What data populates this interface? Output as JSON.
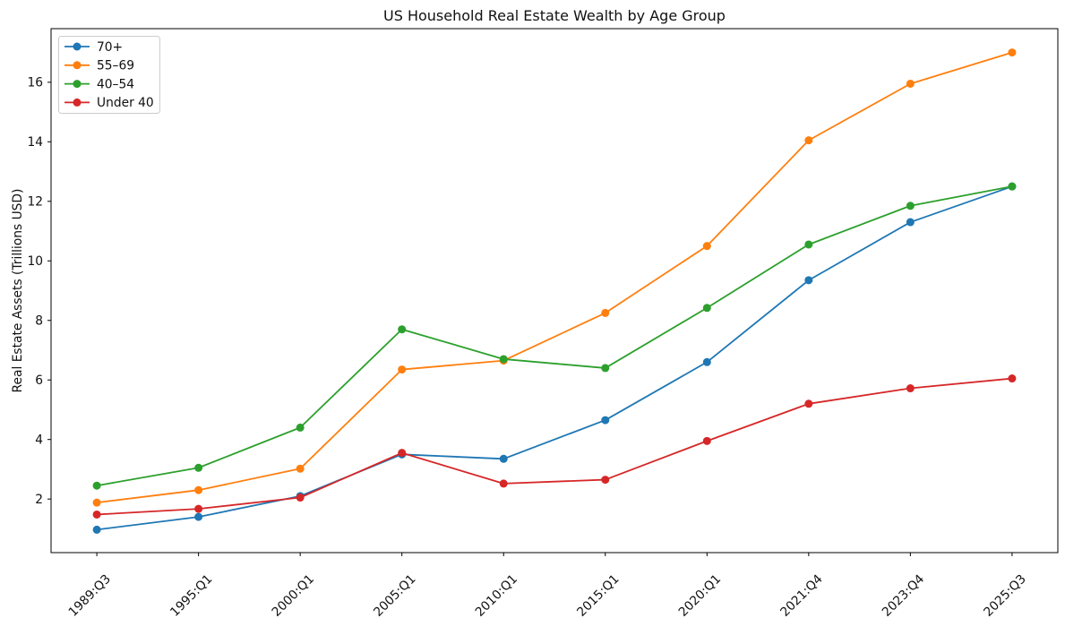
{
  "chart_data": {
    "type": "line",
    "title": "US Household Real Estate Wealth by Age Group",
    "xlabel": "",
    "ylabel": "Real Estate Assets (Trillions USD)",
    "categories": [
      "1989:Q3",
      "1995:Q1",
      "2000:Q1",
      "2005:Q1",
      "2010:Q1",
      "2015:Q1",
      "2020:Q1",
      "2021:Q4",
      "2023:Q4",
      "2025:Q3"
    ],
    "series": [
      {
        "name": "70+",
        "color": "#1f77b4",
        "values": [
          0.97,
          1.4,
          2.1,
          3.5,
          3.35,
          4.65,
          6.6,
          9.35,
          11.3,
          12.5
        ]
      },
      {
        "name": "55–69",
        "color": "#ff7f0e",
        "values": [
          1.88,
          2.3,
          3.02,
          6.35,
          6.65,
          8.25,
          10.5,
          14.05,
          15.95,
          17.0
        ]
      },
      {
        "name": "40–54",
        "color": "#2ca02c",
        "values": [
          2.45,
          3.05,
          4.4,
          7.7,
          6.7,
          6.4,
          8.42,
          10.55,
          11.85,
          12.5
        ]
      },
      {
        "name": "Under 40",
        "color": "#d62728",
        "values": [
          1.48,
          1.67,
          2.05,
          3.55,
          2.52,
          2.65,
          3.95,
          5.2,
          5.72,
          6.05
        ]
      }
    ],
    "ylim": [
      0.2,
      17.8
    ],
    "yticks": [
      2,
      4,
      6,
      8,
      10,
      12,
      14,
      16
    ],
    "legend_position": "upper left",
    "grid": false,
    "marker": "o",
    "background_color": "#ffffff",
    "spine_color": "#000000",
    "legend_border_color": "#cccccc"
  }
}
